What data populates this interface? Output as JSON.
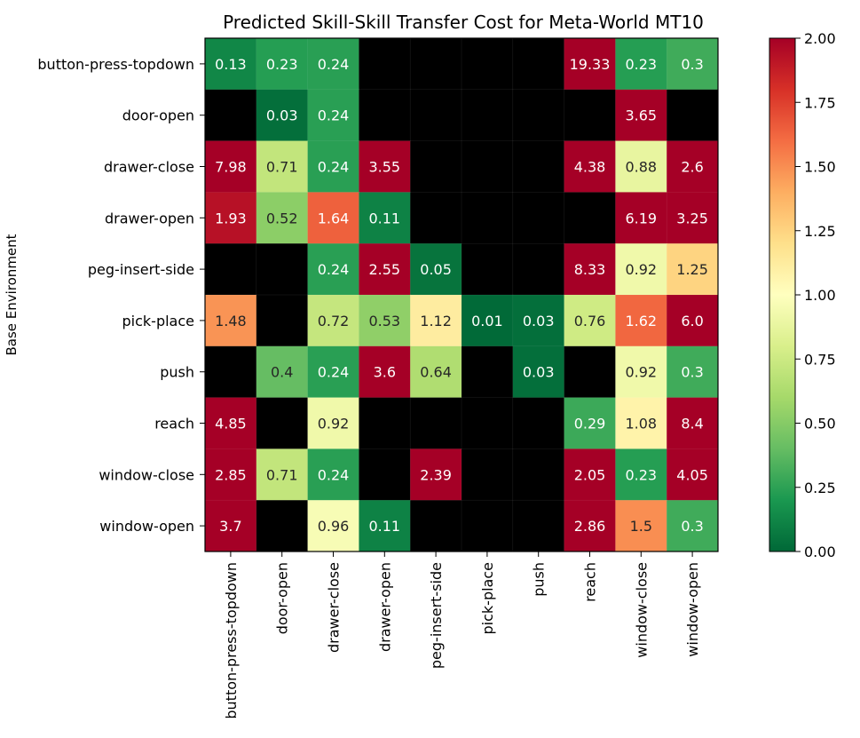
{
  "chart_data": {
    "type": "heatmap",
    "title": "Predicted Skill-Skill Transfer Cost for Meta-World MT10",
    "ylabel": "Base Environment",
    "xlabel": "",
    "rows": [
      "button-press-topdown",
      "door-open",
      "drawer-close",
      "drawer-open",
      "peg-insert-side",
      "pick-place",
      "push",
      "reach",
      "window-close",
      "window-open"
    ],
    "columns": [
      "button-press-topdown",
      "door-open",
      "drawer-close",
      "drawer-open",
      "peg-insert-side",
      "pick-place",
      "push",
      "reach",
      "window-close",
      "window-open"
    ],
    "values": [
      [
        0.13,
        0.23,
        0.24,
        null,
        null,
        null,
        null,
        19.33,
        0.23,
        0.3
      ],
      [
        null,
        0.03,
        0.24,
        null,
        null,
        null,
        null,
        null,
        3.65,
        null
      ],
      [
        7.98,
        0.71,
        0.24,
        3.55,
        null,
        null,
        null,
        4.38,
        0.88,
        2.6
      ],
      [
        1.93,
        0.52,
        1.64,
        0.11,
        null,
        null,
        null,
        null,
        6.19,
        3.25
      ],
      [
        null,
        null,
        0.24,
        2.55,
        0.05,
        null,
        null,
        8.33,
        0.92,
        1.25
      ],
      [
        1.48,
        null,
        0.72,
        0.53,
        1.12,
        0.01,
        0.03,
        0.76,
        1.62,
        6.0
      ],
      [
        null,
        0.4,
        0.24,
        3.6,
        0.64,
        null,
        0.03,
        null,
        0.92,
        0.3
      ],
      [
        4.85,
        null,
        0.92,
        null,
        null,
        null,
        null,
        0.29,
        1.08,
        8.4
      ],
      [
        2.85,
        0.71,
        0.24,
        null,
        2.39,
        null,
        null,
        2.05,
        0.23,
        4.05
      ],
      [
        3.7,
        null,
        0.96,
        0.11,
        null,
        null,
        null,
        2.86,
        1.5,
        0.3
      ]
    ],
    "labels": [
      [
        "0.13",
        "0.23",
        "0.24",
        "",
        "",
        "",
        "",
        "19.33",
        "0.23",
        "0.3"
      ],
      [
        "",
        "0.03",
        "0.24",
        "",
        "",
        "",
        "",
        "",
        "3.65",
        ""
      ],
      [
        "7.98",
        "0.71",
        "0.24",
        "3.55",
        "",
        "",
        "",
        "4.38",
        "0.88",
        "2.6"
      ],
      [
        "1.93",
        "0.52",
        "1.64",
        "0.11",
        "",
        "",
        "",
        "",
        "6.19",
        "3.25"
      ],
      [
        "",
        "",
        "0.24",
        "2.55",
        "0.05",
        "",
        "",
        "8.33",
        "0.92",
        "1.25"
      ],
      [
        "1.48",
        "",
        "0.72",
        "0.53",
        "1.12",
        "0.01",
        "0.03",
        "0.76",
        "1.62",
        "6.0"
      ],
      [
        "",
        "0.4",
        "0.24",
        "3.6",
        "0.64",
        "",
        "0.03",
        "",
        "0.92",
        "0.3"
      ],
      [
        "4.85",
        "",
        "0.92",
        "",
        "",
        "",
        "",
        "0.29",
        "1.08",
        "8.4"
      ],
      [
        "2.85",
        "0.71",
        "0.24",
        "",
        "2.39",
        "",
        "",
        "2.05",
        "0.23",
        "4.05"
      ],
      [
        "3.7",
        "",
        "0.96",
        "0.11",
        "",
        "",
        "",
        "2.86",
        "1.5",
        "0.3"
      ]
    ],
    "missing_color": "#000000",
    "colormap": "RdYlGn_r",
    "vmin": 0.0,
    "vmax": 2.0,
    "colorbar_ticks": [
      "0.00",
      "0.25",
      "0.50",
      "0.75",
      "1.00",
      "1.25",
      "1.50",
      "1.75",
      "2.00"
    ],
    "grid": false
  }
}
